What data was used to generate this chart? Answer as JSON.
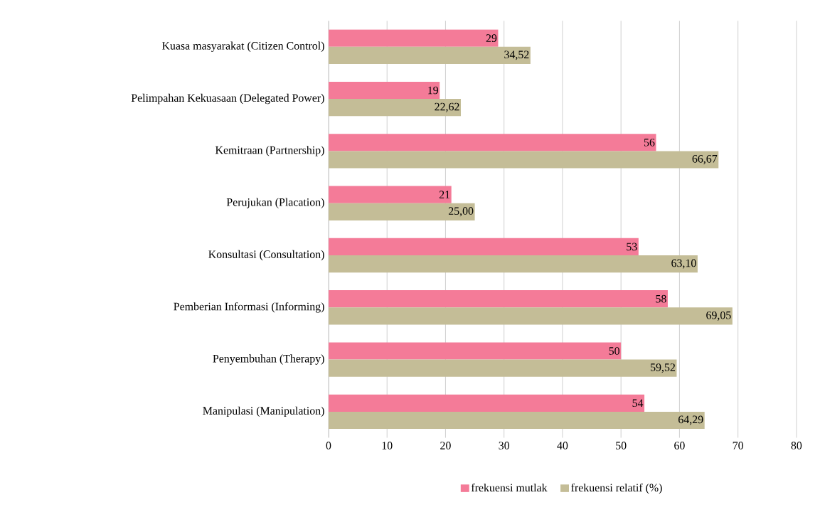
{
  "chart_data": {
    "type": "bar",
    "orientation": "horizontal",
    "categories": [
      "Kuasa masyarakat (Citizen Control)",
      "Pelimpahan Kekuasaan (Delegated Power)",
      "Kemitraan (Partnership)",
      "Perujukan (Placation)",
      "Konsultasi (Consultation)",
      "Pemberian Informasi (Informing)",
      "Penyembuhan (Therapy)",
      "Manipulasi (Manipulation)"
    ],
    "series": [
      {
        "name": "frekuensi mutlak",
        "color": "#f47b98",
        "values": [
          29,
          19,
          56,
          21,
          53,
          58,
          50,
          54
        ],
        "value_labels": [
          "29",
          "19",
          "56",
          "21",
          "53",
          "58",
          "50",
          "54"
        ]
      },
      {
        "name": "frekuensi relatif (%)",
        "color": "#c4bd97",
        "values": [
          34.52,
          22.62,
          66.67,
          25.0,
          63.1,
          69.05,
          59.52,
          64.29
        ],
        "value_labels": [
          "34,52",
          "22,62",
          "66,67",
          "25,00",
          "63,10",
          "69,05",
          "59,52",
          "64,29"
        ]
      }
    ],
    "xlim": [
      0,
      80
    ],
    "xticks": [
      0,
      10,
      20,
      30,
      40,
      50,
      60,
      70,
      80
    ],
    "grid": "x",
    "legend": "bottom"
  }
}
